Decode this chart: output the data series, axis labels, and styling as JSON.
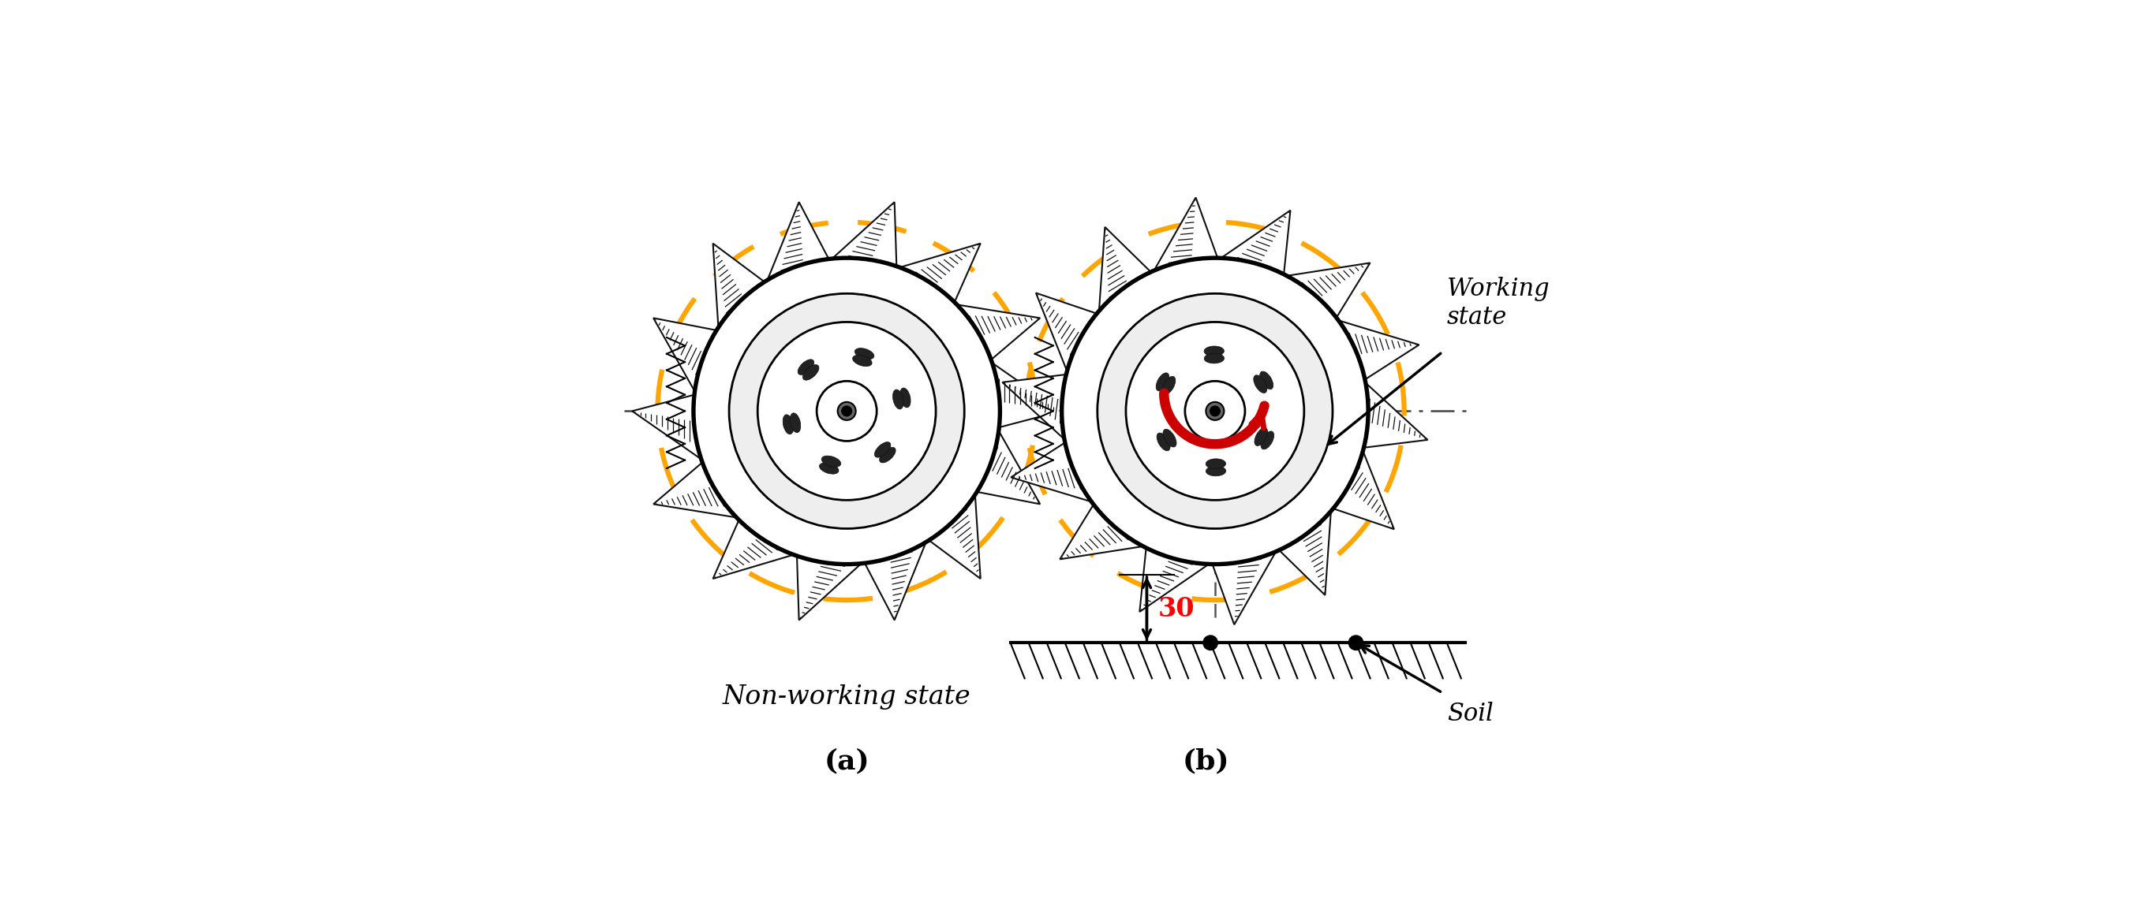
{
  "fig_width": 27.11,
  "fig_height": 11.58,
  "bg_color": "#ffffff",
  "dashed_color": "#FFA500",
  "ring_color": "#000000",
  "spike_color": "#111111",
  "centerline_color": "#444444",
  "rotation_arrow_color": "#cc0000",
  "label_a": "(a)",
  "label_b": "(b)",
  "label_nonworking": "Non-working state",
  "label_working_state": "Working\nstate",
  "label_soil": "Soil",
  "label_30": "30"
}
